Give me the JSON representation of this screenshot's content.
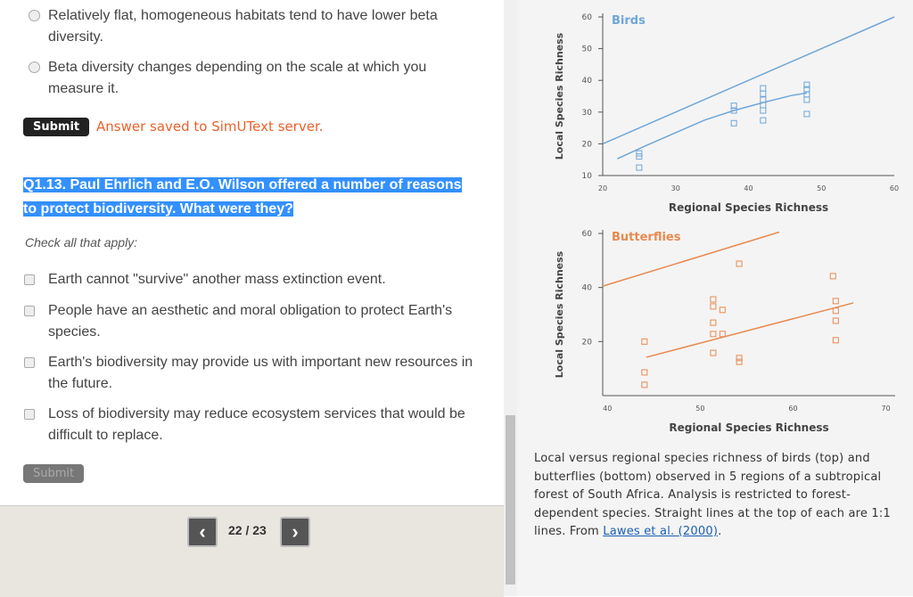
{
  "quiz": {
    "prev_options": [
      "Relatively flat, homogeneous habitats tend to have lower beta diversity.",
      "Beta diversity changes depending on the scale at which you measure it."
    ],
    "submit": "Submit",
    "status": "Answer saved to SimUText server.",
    "question": "Q1.13. Paul Ehrlich and E.O. Wilson offered a number of reasons to protect biodiversity. What were they?",
    "instruction": "Check all that apply:",
    "options": [
      "Earth cannot \"survive\" another mass extinction event.",
      "People have an aesthetic and moral obligation to protect Earth's species.",
      "Earth's biodiversity may provide us with important new resources in the future.",
      "Loss of biodiversity may reduce ecosystem services that would be difficult to replace."
    ],
    "submit_disabled": "Submit",
    "page": "22 / 23"
  },
  "chart_data": [
    {
      "type": "scatter",
      "title": "Birds",
      "xlabel": "Regional Species Richness",
      "ylabel": "Local Species Richness",
      "color": "#6fa6d8",
      "xlim": [
        20,
        60
      ],
      "ylim": [
        10,
        60
      ],
      "xticks": [
        20,
        30,
        40,
        50,
        60
      ],
      "yticks": [
        10,
        20,
        30,
        40,
        50,
        60
      ],
      "series": [
        {
          "mode": "markers",
          "x": [
            25,
            25,
            25,
            38,
            38,
            38,
            42,
            42,
            42,
            42,
            42,
            42,
            48,
            48,
            48,
            48,
            48
          ],
          "values": [
            17,
            16,
            12.5,
            32,
            30.5,
            26.5,
            37.5,
            35.8,
            33.9,
            32.2,
            30.5,
            27.4,
            38.6,
            37.2,
            35.6,
            33.9,
            29.4
          ]
        },
        {
          "mode": "line",
          "x": [
            20,
            60
          ],
          "values": [
            20,
            60
          ]
        },
        {
          "mode": "line",
          "x": [
            22,
            26,
            30,
            34,
            38,
            42,
            46,
            48
          ],
          "values": [
            15.3,
            19.5,
            23.5,
            27.5,
            30.5,
            33,
            35.3,
            36
          ]
        }
      ]
    },
    {
      "type": "scatter",
      "title": "Butterflies",
      "xlabel": "Regional Species Richness",
      "ylabel": "Local Species Richness",
      "color": "#e8894f",
      "xlim": [
        39.5,
        71
      ],
      "ylim": [
        0,
        60
      ],
      "xticks": [
        40,
        50,
        60,
        70
      ],
      "yticks": [
        20,
        40,
        60
      ],
      "series": [
        {
          "mode": "markers",
          "x": [
            44,
            44,
            44,
            51.4,
            51.4,
            51.4,
            51.4,
            51.4,
            52.4,
            52.4,
            54.2,
            54.2,
            54.2,
            64.3,
            64.6,
            64.6,
            64.6,
            64.6
          ],
          "values": [
            20,
            8.6,
            4,
            35.6,
            33,
            27,
            22.8,
            15.8,
            31.7,
            22.8,
            48.8,
            13.9,
            12.5,
            44.2,
            35,
            31.4,
            27.7,
            20.5
          ]
        },
        {
          "mode": "line",
          "x": [
            39.5,
            58.5
          ],
          "values": [
            40.5,
            60.5
          ]
        },
        {
          "mode": "line",
          "x": [
            44.2,
            66.5
          ],
          "values": [
            14.2,
            34.3
          ]
        }
      ]
    }
  ],
  "caption": {
    "text": "Local versus regional species richness of birds (top) and butterflies (bottom) observed in 5 regions of a subtropical forest of South Africa. Analysis is restricted to forest-dependent species. Straight lines at the top of each are 1:1 lines. From ",
    "link": "Lawes et al. (2000)",
    "end": "."
  }
}
